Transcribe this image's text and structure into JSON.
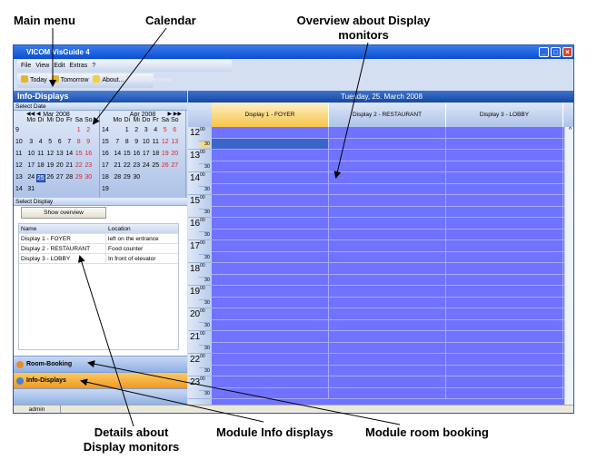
{
  "annotations": {
    "main_menu": "Main menu",
    "calendar": "Calendar",
    "overview": "Overview about Display monitors",
    "details": "Details about Display monitors",
    "module_info": "Module Info displays",
    "module_room": "Module room booking"
  },
  "window": {
    "title": "VICOM VisGuide 4"
  },
  "menu": [
    "File",
    "View",
    "Edit",
    "Extras",
    "?"
  ],
  "toolbar": {
    "today": "Today",
    "tomorrow": "Tomorrow",
    "about": "About...",
    "show_overview": "Show overview"
  },
  "left": {
    "title": "Info-Displays",
    "select_date": "Select Date",
    "select_display": "Select Display",
    "show_overview": "Show overview"
  },
  "calendar": {
    "dows": [
      "Mo",
      "Di",
      "Mi",
      "Do",
      "Fr",
      "Sa",
      "So"
    ],
    "months": [
      {
        "title": "Mar 2008",
        "weeks": [
          {
            "wk": "9",
            "days": [
              "",
              "",
              "",
              "",
              "",
              "1",
              "2"
            ]
          },
          {
            "wk": "10",
            "days": [
              "3",
              "4",
              "5",
              "6",
              "7",
              "8",
              "9"
            ]
          },
          {
            "wk": "11",
            "days": [
              "10",
              "11",
              "12",
              "13",
              "14",
              "15",
              "16"
            ]
          },
          {
            "wk": "12",
            "days": [
              "17",
              "18",
              "19",
              "20",
              "21",
              "22",
              "23"
            ]
          },
          {
            "wk": "13",
            "days": [
              "24",
              "25",
              "26",
              "27",
              "28",
              "29",
              "30"
            ]
          },
          {
            "wk": "14",
            "days": [
              "31",
              "",
              "",
              "",
              "",
              "",
              ""
            ]
          }
        ]
      },
      {
        "title": "Apr 2008",
        "weeks": [
          {
            "wk": "14",
            "days": [
              "",
              "1",
              "2",
              "3",
              "4",
              "5",
              "6"
            ]
          },
          {
            "wk": "15",
            "days": [
              "7",
              "8",
              "9",
              "10",
              "11",
              "12",
              "13"
            ]
          },
          {
            "wk": "16",
            "days": [
              "14",
              "15",
              "16",
              "17",
              "18",
              "19",
              "20"
            ]
          },
          {
            "wk": "17",
            "days": [
              "21",
              "22",
              "23",
              "24",
              "25",
              "26",
              "27"
            ]
          },
          {
            "wk": "18",
            "days": [
              "28",
              "29",
              "30",
              "",
              "",
              "",
              ""
            ]
          },
          {
            "wk": "19",
            "days": [
              "",
              "",
              "",
              "",
              "",
              "",
              ""
            ]
          }
        ]
      }
    ],
    "selected": "25"
  },
  "table": {
    "headers": [
      "Name",
      "Location"
    ],
    "rows": [
      [
        "Display 1 - FOYER",
        "left on the entrance"
      ],
      [
        "Display 2 - RESTAURANT",
        "Food counter"
      ],
      [
        "Display 3 - LOBBY",
        "In front of elevator"
      ]
    ]
  },
  "modules": {
    "room": "Room-Booking",
    "info": "Info-Displays"
  },
  "schedule": {
    "date": "Tuesday, 25. March 2008",
    "columns": [
      "Display 1 - FOYER",
      "Display 2 - RESTAURANT",
      "Display 3 - LOBBY"
    ],
    "hours": [
      "12",
      "13",
      "14",
      "15",
      "16",
      "17",
      "18",
      "19",
      "20",
      "21",
      "22",
      "23"
    ],
    "minute_label": "00",
    "half_label": "30"
  },
  "status": {
    "user": "admin"
  },
  "colors": {
    "grid": "#6f73ff",
    "accent": "#f6c54a",
    "header": "#1c4fb0"
  }
}
